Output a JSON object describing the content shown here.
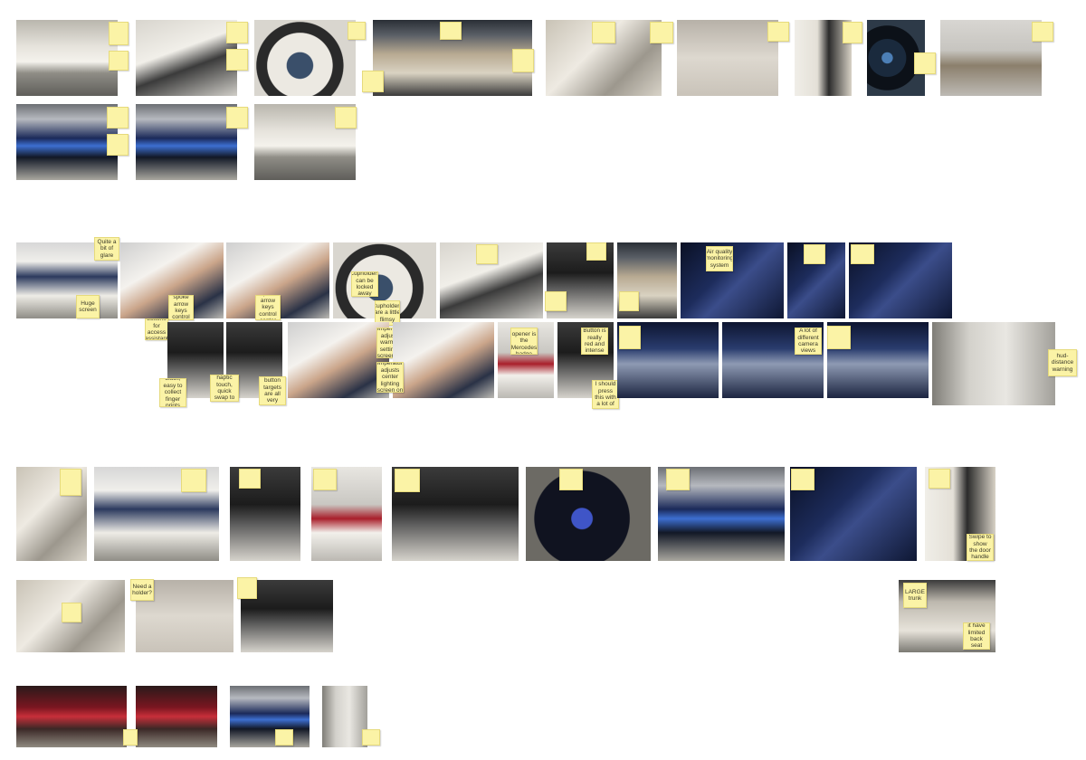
{
  "board": {
    "background_color": "#ffffff",
    "note_color": "#fbf3a6"
  },
  "notes": {
    "glare": "Quite a bit of glare",
    "huge_screen": "Huge screen",
    "cupholders_locked": "Cupholders can be locked away",
    "cupholders_flimsy": "Cupholders are a little flimsy",
    "air_quality": "Air quality monitoring system",
    "quick_buttons": "Quick buttons for access assistant functions",
    "left_spoke": "Left spoke arrow keys control meter",
    "right_spoke": "Right spoke arrow keys control center hit",
    "wheel_temp_temp": "Wheel temperature adjusts warmer settings screen on ctrl wrap",
    "wheel_temp_light": "Wheel temperature adjusts center lighting screen on ctrl wrap",
    "trunk_opener": "Trunk opener is the Mercedes badge",
    "button_red": "Button is really red and intense",
    "camera_views": "A lot of different camera views",
    "hud_warning": "hud-distance warning",
    "glossy_black": "All on gloss black, easy to collect finger prints and smudges",
    "haptic_buttons": "Buttons are all haptic touch, quick swap to make mistakes",
    "small_targets": "The button targets are all very small",
    "feel_caution": "I feel like I should press this with a lot of caution",
    "swipe_handle": "Swipe to show the door handle",
    "need_holder": "Need a holder?",
    "large_trunk": "LARGE trunk",
    "trunk_limited": "So does it have limited back seat space"
  }
}
